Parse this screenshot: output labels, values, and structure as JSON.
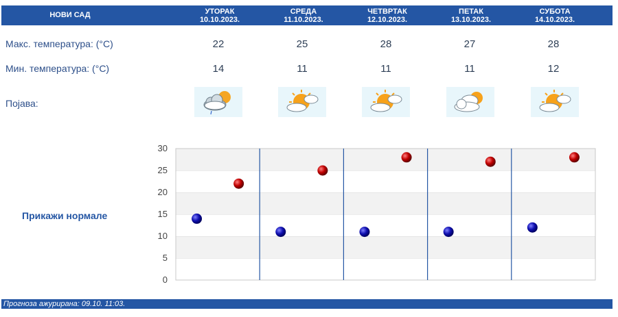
{
  "header": {
    "city": "НОВИ САД",
    "days": [
      {
        "name": "УТОРАК",
        "date": "10.10.2023."
      },
      {
        "name": "СРЕДА",
        "date": "11.10.2023."
      },
      {
        "name": "ЧЕТВРТАК",
        "date": "12.10.2023."
      },
      {
        "name": "ПЕТАК",
        "date": "13.10.2023."
      },
      {
        "name": "СУБОТА",
        "date": "14.10.2023."
      }
    ]
  },
  "rows": {
    "max_label": "Макс. температура: (°C)",
    "min_label": "Мин. температура: (°C)",
    "phenomenon_label": "Појава:"
  },
  "forecast": {
    "max": [
      "22",
      "25",
      "28",
      "27",
      "28"
    ],
    "min": [
      "14",
      "11",
      "11",
      "11",
      "12"
    ],
    "icons": [
      "cloudy-sun-rain-icon",
      "sun-cloud-icon",
      "sun-cloud-icon",
      "clouds-sun-icon",
      "sun-cloud-icon"
    ]
  },
  "normals_label": "Прикажи нормале",
  "chart_data": {
    "type": "scatter",
    "categories": [
      "10.10.2023.",
      "11.10.2023.",
      "12.10.2023.",
      "13.10.2023.",
      "14.10.2023."
    ],
    "series": [
      {
        "values": [
          14,
          11,
          11,
          11,
          12
        ],
        "color": "#1010b0"
      },
      {
        "values": [
          22,
          25,
          28,
          27,
          28
        ],
        "color": "#c00000"
      }
    ],
    "yticks": [
      "0",
      "5",
      "10",
      "15",
      "20",
      "25",
      "30"
    ],
    "ylim": [
      0,
      30
    ],
    "grid": true
  },
  "footer": {
    "text": "Прогноза ажурирана:  09.10. 11:03."
  },
  "colors": {
    "accent": "#2456a4",
    "min_marker": "#1010b0",
    "max_marker": "#c00000"
  }
}
